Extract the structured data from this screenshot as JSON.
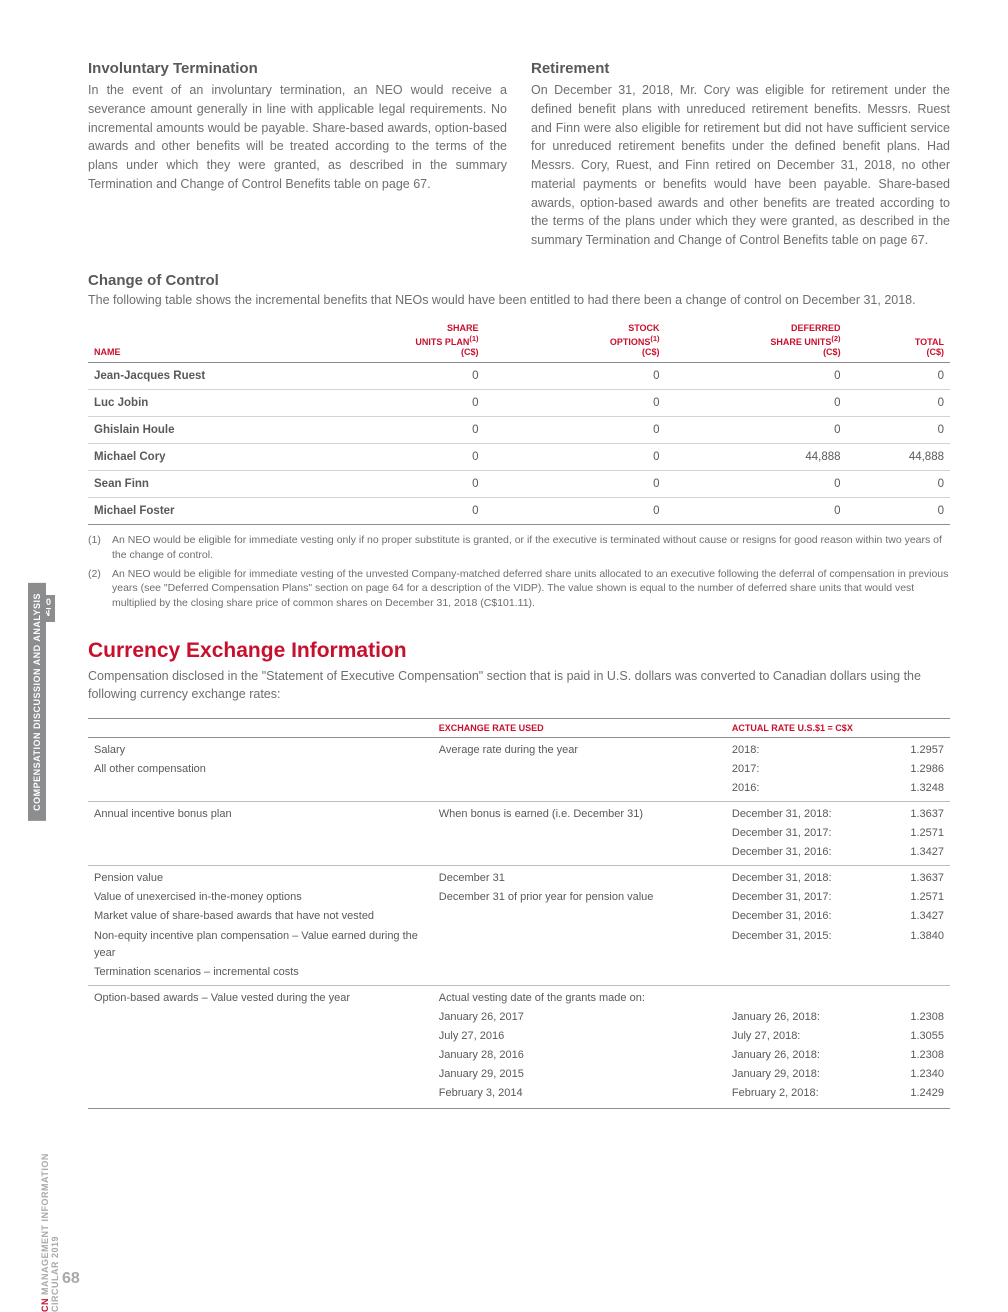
{
  "sidebar": {
    "section_label": "COMPENSATION DISCUSSION AND ANALYSIS",
    "fraction_top": "100",
    "fraction_bottom": "CN",
    "doc_label_prefix": "CN ",
    "doc_label": "MANAGEMENT INFORMATION CIRCULAR 2019"
  },
  "page_number": "68",
  "involuntary": {
    "title": "Involuntary Termination",
    "body": "In the event of an involuntary termination, an NEO would receive a severance amount generally in line with applicable legal requirements. No incremental amounts would be payable. Share-based awards, option-based awards and other benefits will be treated according to the terms of the plans under which they were granted, as described in the summary Termination and Change of Control Benefits table on page 67."
  },
  "retirement": {
    "title": "Retirement",
    "body": "On December 31, 2018, Mr. Cory was eligible for retirement under the defined benefit plans with unreduced retirement benefits. Messrs. Ruest and Finn were also eligible for retirement but did not have sufficient service for unreduced retirement benefits under the defined benefit plans. Had Messrs. Cory, Ruest, and Finn retired on December 31, 2018, no other material payments or benefits would have been payable. Share-based awards, option-based awards and other benefits are treated according to the terms of the plans under which they were granted, as described in the summary Termination and Change of Control Benefits table on page 67."
  },
  "coc": {
    "title": "Change of Control",
    "intro": "The following table shows the incremental benefits that NEOs would have been entitled to had there been a change of control on December 31, 2018.",
    "headers": {
      "name": "NAME",
      "share": "SHARE\nUNITS PLAN",
      "share_sup": "(1)",
      "share_sub": "(C$)",
      "stock": "STOCK\nOPTIONS",
      "stock_sup": "(1)",
      "stock_sub": "(C$)",
      "deferred": "DEFERRED\nSHARE UNITS",
      "deferred_sup": "(2)",
      "deferred_sub": "(C$)",
      "total": "TOTAL",
      "total_sub": "(C$)"
    },
    "rows": [
      {
        "name": "Jean-Jacques Ruest",
        "share": "0",
        "stock": "0",
        "deferred": "0",
        "total": "0"
      },
      {
        "name": "Luc Jobin",
        "share": "0",
        "stock": "0",
        "deferred": "0",
        "total": "0"
      },
      {
        "name": "Ghislain Houle",
        "share": "0",
        "stock": "0",
        "deferred": "0",
        "total": "0"
      },
      {
        "name": "Michael Cory",
        "share": "0",
        "stock": "0",
        "deferred": "44,888",
        "total": "44,888"
      },
      {
        "name": "Sean Finn",
        "share": "0",
        "stock": "0",
        "deferred": "0",
        "total": "0"
      },
      {
        "name": "Michael Foster",
        "share": "0",
        "stock": "0",
        "deferred": "0",
        "total": "0"
      }
    ],
    "footnotes": [
      {
        "num": "(1)",
        "text": "An NEO would be eligible for immediate vesting only if no proper substitute is granted, or if the executive is terminated without cause or resigns for good reason within two years of the change of control."
      },
      {
        "num": "(2)",
        "text": "An NEO would be eligible for immediate vesting of the unvested Company-matched deferred share units allocated to an executive following the deferral of compensation in previous years (see \"Deferred Compensation Plans\" section on page 64 for a description of the VIDP). The value shown is equal to the number of deferred share units that would vest multiplied by the closing share price of common shares on December 31, 2018 (C$101.11)."
      }
    ]
  },
  "exchange": {
    "title": "Currency Exchange Information",
    "intro": "Compensation disclosed in the \"Statement of Executive Compensation\" section that is paid in U.S. dollars was converted to Canadian dollars using the following currency exchange rates:",
    "headers": {
      "col1": "",
      "col2": "EXCHANGE RATE USED",
      "col3": "ACTUAL RATE U.S.$1 = C$X",
      "col4": ""
    },
    "groups": [
      {
        "rows": [
          {
            "c1": "Salary",
            "c2": "Average rate during the year",
            "c3": "2018:",
            "c4": "1.2957"
          },
          {
            "c1": "All other compensation",
            "c2": "",
            "c3": "2017:",
            "c4": "1.2986"
          },
          {
            "c1": "",
            "c2": "",
            "c3": "2016:",
            "c4": "1.3248"
          }
        ]
      },
      {
        "rows": [
          {
            "c1": "Annual incentive bonus plan",
            "c2": "When bonus is earned (i.e. December 31)",
            "c3": "December 31, 2018:",
            "c4": "1.3637"
          },
          {
            "c1": "",
            "c2": "",
            "c3": "December 31, 2017:",
            "c4": "1.2571"
          },
          {
            "c1": "",
            "c2": "",
            "c3": "December 31, 2016:",
            "c4": "1.3427"
          }
        ]
      },
      {
        "rows": [
          {
            "c1": "Pension value",
            "c2": "December 31",
            "c3": "December 31, 2018:",
            "c4": "1.3637"
          },
          {
            "c1": "Value of unexercised in-the-money options",
            "c2": "December 31 of prior year for pension value",
            "c3": "December 31, 2017:",
            "c4": "1.2571"
          },
          {
            "c1": "Market value of share-based awards that have not vested",
            "c2": "",
            "c3": "December 31, 2016:",
            "c4": "1.3427"
          },
          {
            "c1": "Non-equity incentive plan compensation – Value earned during the year",
            "c2": "",
            "c3": "December 31, 2015:",
            "c4": "1.3840"
          },
          {
            "c1": "Termination scenarios – incremental costs",
            "c2": "",
            "c3": "",
            "c4": ""
          }
        ]
      },
      {
        "rows": [
          {
            "c1": "Option-based awards – Value vested during the year",
            "c2": "Actual vesting date of the grants made on:",
            "c3": "",
            "c4": ""
          },
          {
            "c1": "",
            "c2": "January 26, 2017",
            "c3": "January 26, 2018:",
            "c4": "1.2308"
          },
          {
            "c1": "",
            "c2": "July 27, 2016",
            "c3": "July 27, 2018:",
            "c4": "1.3055"
          },
          {
            "c1": "",
            "c2": "January 28, 2016",
            "c3": "January 26, 2018:",
            "c4": "1.2308"
          },
          {
            "c1": "",
            "c2": "January 29, 2015",
            "c3": "January 29, 2018:",
            "c4": "1.2340"
          },
          {
            "c1": "",
            "c2": "February 3, 2014",
            "c3": "February 2, 2018:",
            "c4": "1.2429"
          }
        ]
      }
    ]
  }
}
